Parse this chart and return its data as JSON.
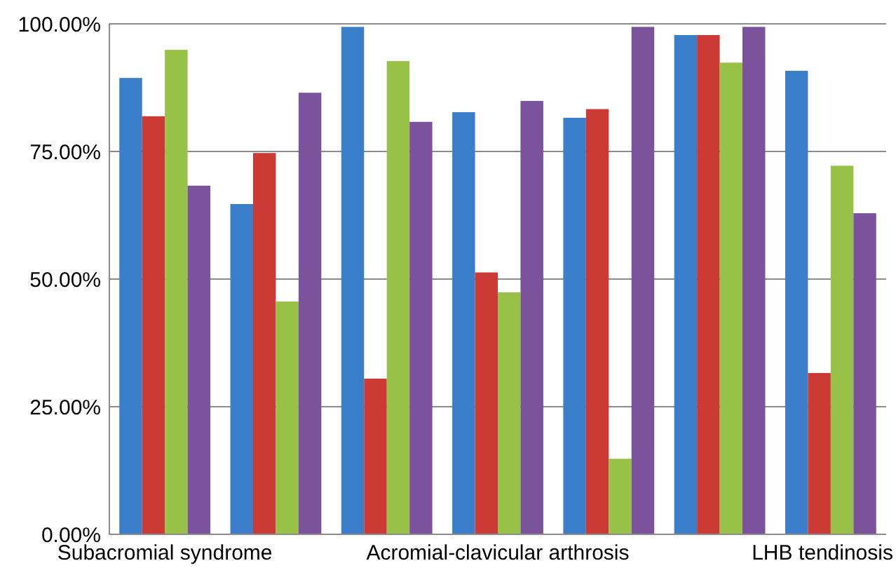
{
  "chart_data": {
    "type": "bar",
    "categories": [
      "Subacromial syndrome",
      null,
      null,
      "Acromial-clavicular arthrosis",
      null,
      null,
      "LHB tendinosis"
    ],
    "series": [
      {
        "color": "#3a7dc9",
        "values": [
          89.4,
          64.7,
          99.4,
          82.7,
          81.6,
          97.8,
          90.8
        ]
      },
      {
        "color": "#cc3a36",
        "values": [
          81.9,
          74.7,
          30.5,
          51.3,
          83.3,
          97.8,
          31.6
        ]
      },
      {
        "color": "#98c148",
        "values": [
          94.9,
          45.6,
          92.7,
          47.4,
          14.8,
          92.4,
          72.2
        ]
      },
      {
        "color": "#7a539c",
        "values": [
          68.3,
          86.5,
          80.8,
          84.9,
          99.4,
          99.4,
          62.9
        ]
      }
    ],
    "ylim": [
      0,
      100
    ],
    "yticks": [
      {
        "value": 0,
        "label": "0.00%"
      },
      {
        "value": 25,
        "label": "25.00%"
      },
      {
        "value": 50,
        "label": "50.00%"
      },
      {
        "value": 75,
        "label": "75.00%"
      },
      {
        "value": 100,
        "label": "100.00%"
      }
    ],
    "grid": "y"
  }
}
